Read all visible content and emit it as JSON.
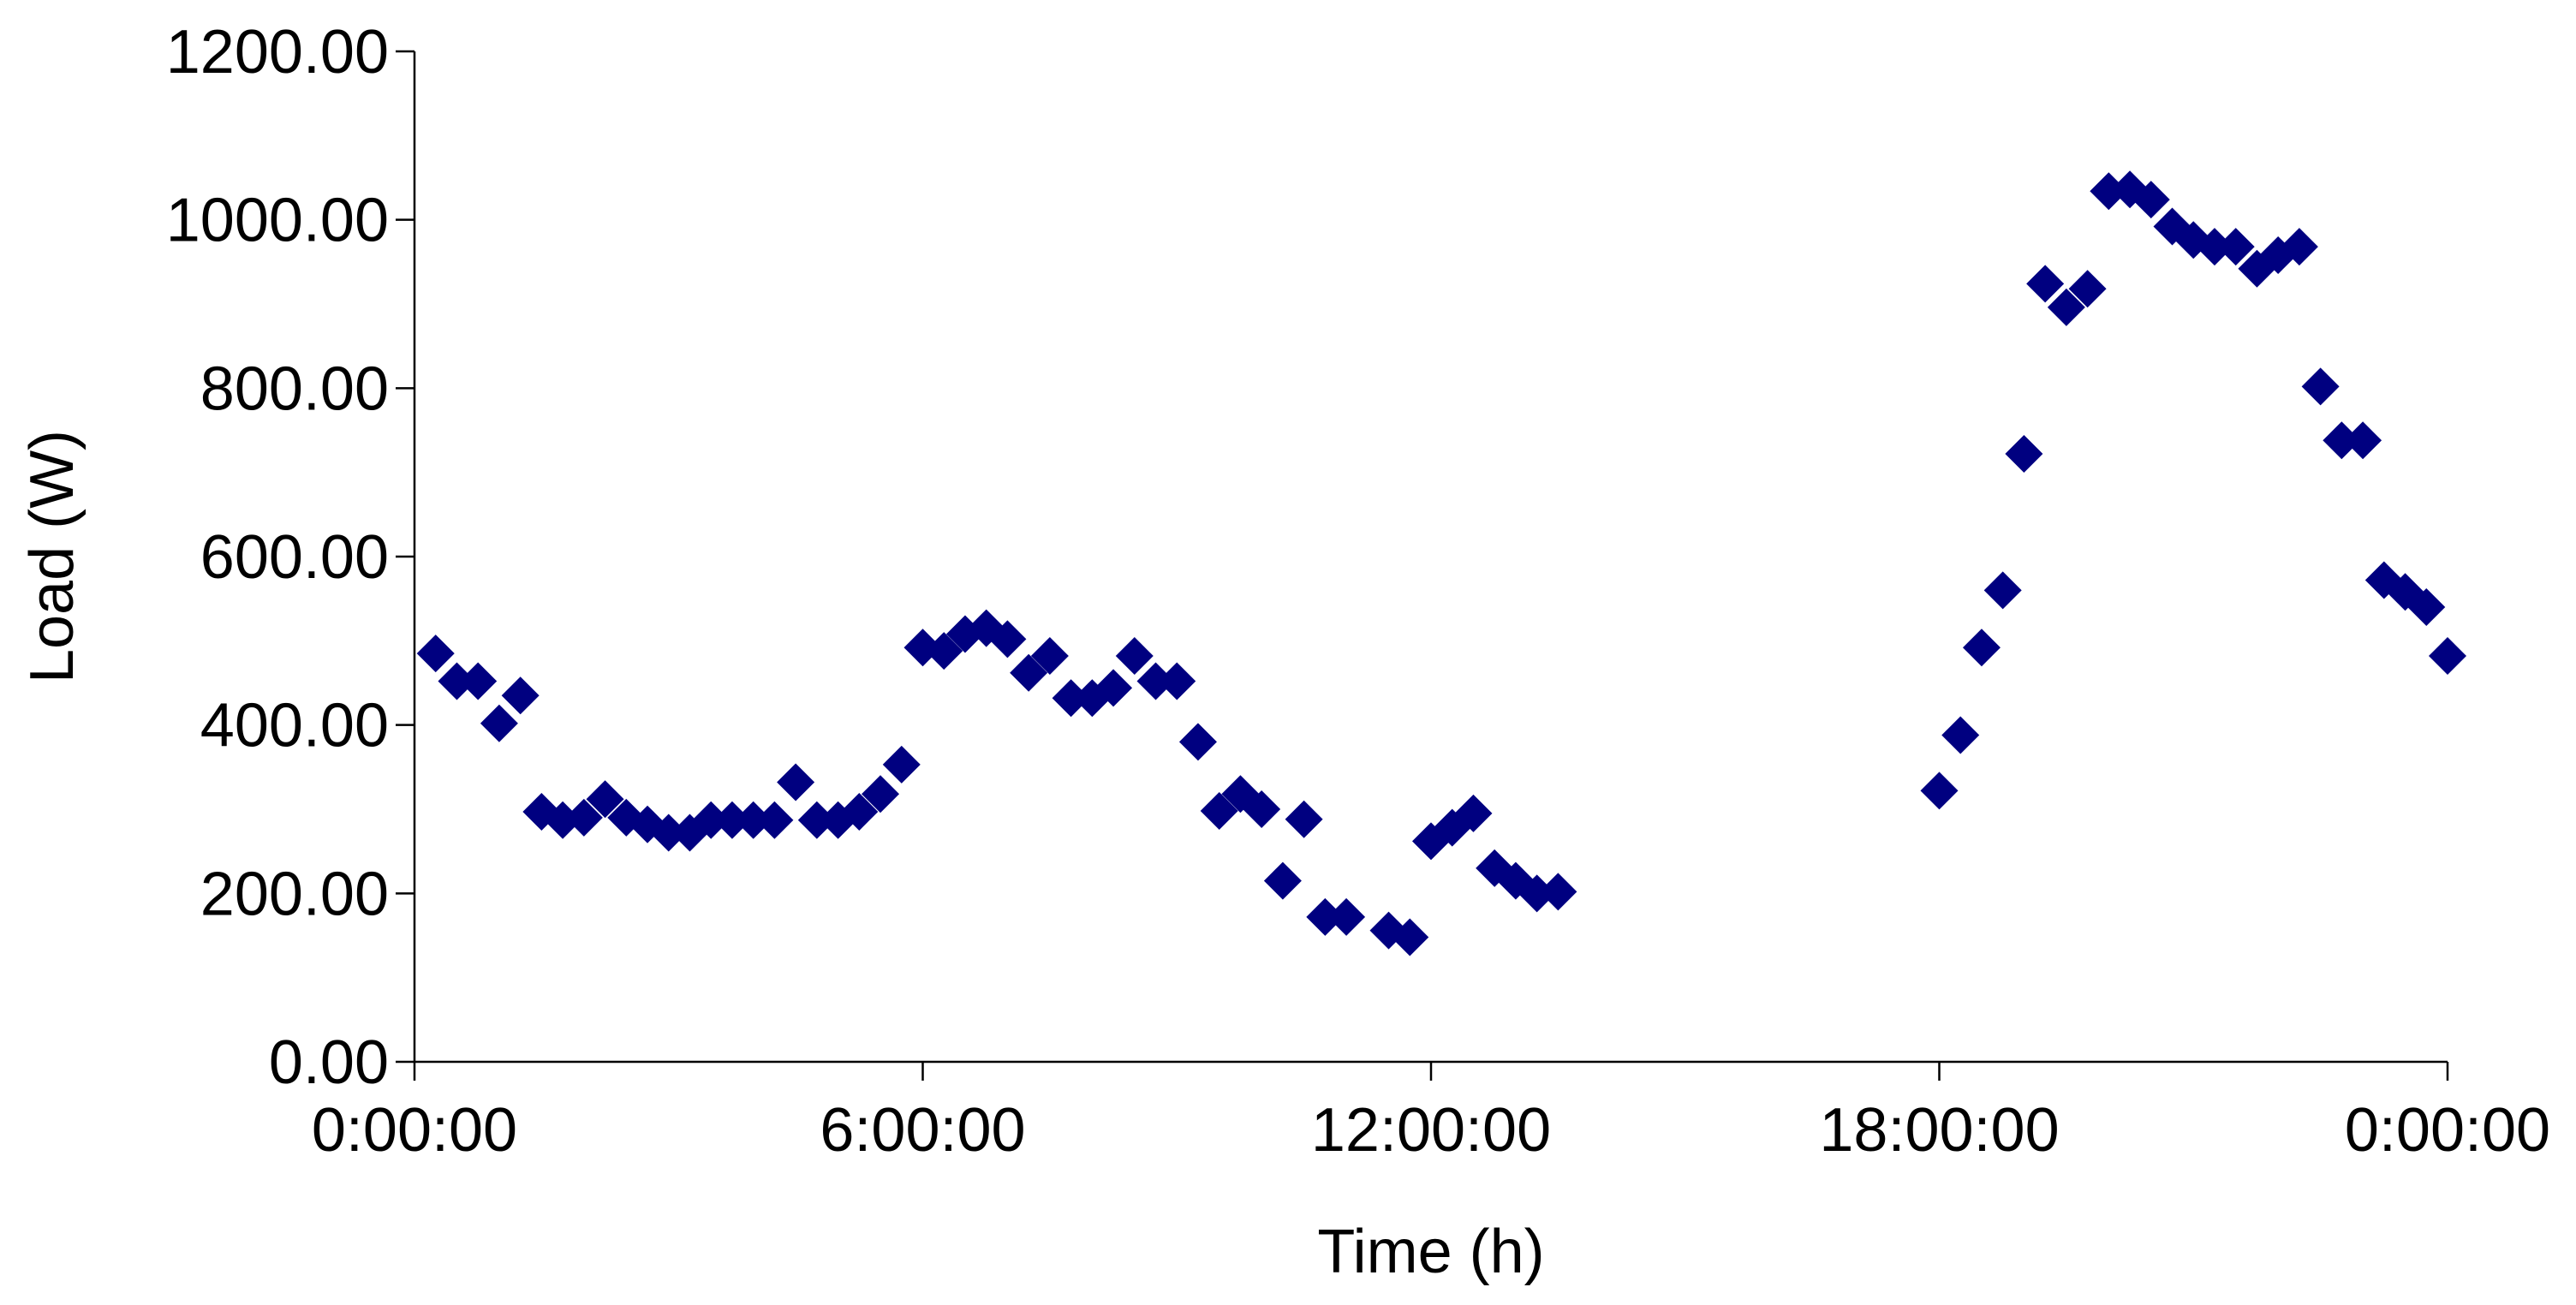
{
  "chart_data": {
    "type": "scatter",
    "title": "",
    "xlabel": "Time (h)",
    "ylabel": "Load (W)",
    "x_unit": "hours",
    "xlim": [
      0,
      24
    ],
    "ylim": [
      0,
      1200
    ],
    "grid": false,
    "legend": "none",
    "marker": "diamond",
    "color": "#000080",
    "x_ticks": [
      {
        "value": 0,
        "label": "0:00:00"
      },
      {
        "value": 6,
        "label": "6:00:00"
      },
      {
        "value": 12,
        "label": "12:00:00"
      },
      {
        "value": 18,
        "label": "18:00:00"
      },
      {
        "value": 24,
        "label": "0:00:00"
      }
    ],
    "y_ticks": [
      {
        "value": 0,
        "label": "0.00"
      },
      {
        "value": 200,
        "label": "200.00"
      },
      {
        "value": 400,
        "label": "400.00"
      },
      {
        "value": 600,
        "label": "600.00"
      },
      {
        "value": 800,
        "label": "800.00"
      },
      {
        "value": 1000,
        "label": "1000.00"
      },
      {
        "value": 1200,
        "label": "1200.00"
      }
    ],
    "series": [
      {
        "points": [
          [
            0.25,
            485
          ],
          [
            0.5,
            452
          ],
          [
            0.75,
            452
          ],
          [
            1.0,
            402
          ],
          [
            1.25,
            435
          ],
          [
            1.5,
            297
          ],
          [
            1.75,
            287
          ],
          [
            2.0,
            290
          ],
          [
            2.25,
            312
          ],
          [
            2.5,
            290
          ],
          [
            2.75,
            282
          ],
          [
            3.0,
            272
          ],
          [
            3.25,
            272
          ],
          [
            3.5,
            287
          ],
          [
            3.75,
            287
          ],
          [
            4.0,
            287
          ],
          [
            4.25,
            287
          ],
          [
            4.5,
            332
          ],
          [
            4.75,
            287
          ],
          [
            5.0,
            287
          ],
          [
            5.25,
            297
          ],
          [
            5.5,
            318
          ],
          [
            5.75,
            353
          ],
          [
            6.0,
            492
          ],
          [
            6.25,
            488
          ],
          [
            6.5,
            508
          ],
          [
            6.75,
            515
          ],
          [
            7.0,
            502
          ],
          [
            7.25,
            462
          ],
          [
            7.5,
            482
          ],
          [
            7.75,
            432
          ],
          [
            8.0,
            432
          ],
          [
            8.25,
            444
          ],
          [
            8.5,
            482
          ],
          [
            8.75,
            452
          ],
          [
            9.0,
            452
          ],
          [
            9.25,
            380
          ],
          [
            9.5,
            298
          ],
          [
            9.75,
            318
          ],
          [
            10.0,
            300
          ],
          [
            10.25,
            215
          ],
          [
            10.5,
            288
          ],
          [
            10.75,
            172
          ],
          [
            11.0,
            172
          ],
          [
            11.5,
            156
          ],
          [
            11.75,
            148
          ],
          [
            12.0,
            262
          ],
          [
            12.25,
            278
          ],
          [
            12.5,
            295
          ],
          [
            12.75,
            230
          ],
          [
            13.0,
            215
          ],
          [
            13.25,
            200
          ],
          [
            13.5,
            202
          ],
          [
            18.0,
            322
          ],
          [
            18.25,
            388
          ],
          [
            18.5,
            492
          ],
          [
            18.75,
            560
          ],
          [
            19.0,
            722
          ],
          [
            19.25,
            924
          ],
          [
            19.5,
            896
          ],
          [
            19.75,
            918
          ],
          [
            20.0,
            1034
          ],
          [
            20.25,
            1036
          ],
          [
            20.5,
            1024
          ],
          [
            20.75,
            992
          ],
          [
            21.0,
            976
          ],
          [
            21.25,
            968
          ],
          [
            21.5,
            968
          ],
          [
            21.75,
            942
          ],
          [
            22.0,
            958
          ],
          [
            22.25,
            968
          ],
          [
            22.5,
            802
          ],
          [
            22.75,
            738
          ],
          [
            23.0,
            738
          ],
          [
            23.25,
            572
          ],
          [
            23.5,
            558
          ],
          [
            23.75,
            540
          ],
          [
            24.0,
            482
          ]
        ]
      }
    ]
  }
}
